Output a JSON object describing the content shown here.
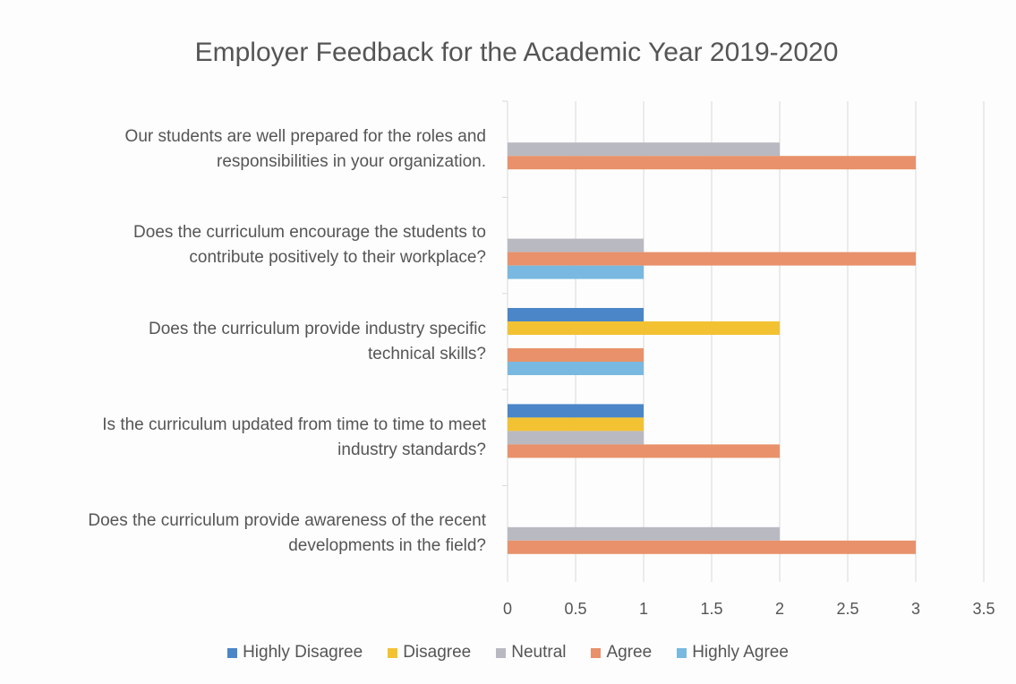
{
  "chart_data": {
    "type": "hbar",
    "title": "Employer Feedback for the Academic Year 2019-2020",
    "categories": [
      "Our students are well prepared for the roles and\nresponsibilities in your organization.",
      "Does the curriculum encourage the students to\ncontribute positively to their workplace?",
      "Does the curriculum provide industry specific\ntechnical skills?",
      "Is the curriculum updated from time to time to meet\nindustry standards?",
      "Does the curriculum provide awareness of the recent\ndevelopments in the field?"
    ],
    "series": [
      {
        "name": "Highly Disagree",
        "color": "#4a86c8",
        "values": [
          0,
          0,
          1,
          1,
          0
        ]
      },
      {
        "name": "Disagree",
        "color": "#f2c233",
        "values": [
          0,
          0,
          2,
          1,
          0
        ]
      },
      {
        "name": "Neutral",
        "color": "#b9b9c1",
        "values": [
          2,
          1,
          0,
          1,
          2
        ]
      },
      {
        "name": "Agree",
        "color": "#e8916a",
        "values": [
          3,
          3,
          1,
          2,
          3
        ]
      },
      {
        "name": "Highly Agree",
        "color": "#79b8e0",
        "values": [
          0,
          1,
          1,
          0,
          0
        ]
      }
    ],
    "xlim": [
      0,
      3.5
    ],
    "xticks": [
      0,
      0.5,
      1,
      1.5,
      2,
      2.5,
      3,
      3.5
    ],
    "grid": true,
    "legend": "bottom"
  }
}
